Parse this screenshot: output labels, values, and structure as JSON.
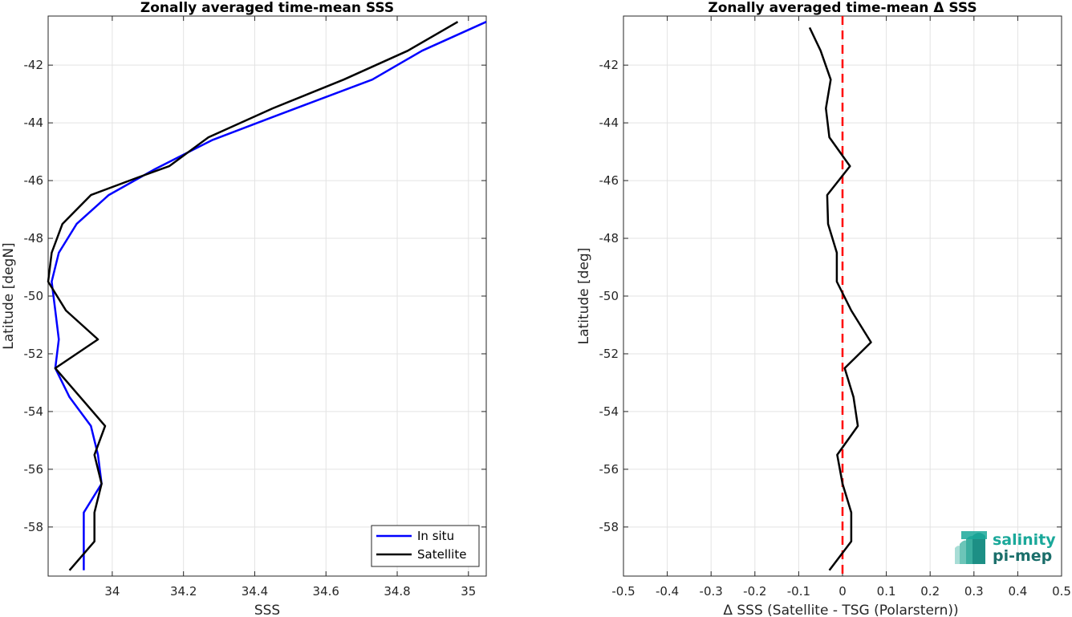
{
  "chart_data": [
    {
      "type": "line",
      "title": "Zonally averaged time-mean SSS",
      "xlabel": "SSS",
      "ylabel": "Latitude [degN]",
      "xlim": [
        33.82,
        35.05
      ],
      "ylim": [
        -59.7,
        -40.3
      ],
      "xticks": [
        34,
        34.2,
        34.4,
        34.6,
        34.8,
        35
      ],
      "xtick_labels": [
        "34",
        "34.2",
        "34.4",
        "34.6",
        "34.8",
        "35"
      ],
      "yticks": [
        -42,
        -44,
        -46,
        -48,
        -50,
        -52,
        -54,
        -56,
        -58
      ],
      "ytick_labels": [
        "-42",
        "-44",
        "-46",
        "-48",
        "-50",
        "-52",
        "-54",
        "-56",
        "-58"
      ],
      "grid": true,
      "legend_location": "bottom-right",
      "series": [
        {
          "name": "In situ",
          "color": "#0000ff",
          "points": [
            [
              35.05,
              -40.5
            ],
            [
              34.87,
              -41.5
            ],
            [
              34.73,
              -42.5
            ],
            [
              34.45,
              -43.8
            ],
            [
              34.28,
              -44.6
            ],
            [
              34.12,
              -45.6
            ],
            [
              33.99,
              -46.5
            ],
            [
              33.9,
              -47.5
            ],
            [
              33.85,
              -48.5
            ],
            [
              33.83,
              -49.5
            ],
            [
              33.84,
              -50.5
            ],
            [
              33.85,
              -51.5
            ],
            [
              33.84,
              -52.5
            ],
            [
              33.88,
              -53.5
            ],
            [
              33.94,
              -54.5
            ],
            [
              33.96,
              -55.5
            ],
            [
              33.97,
              -56.5
            ],
            [
              33.92,
              -57.5
            ],
            [
              33.92,
              -58.5
            ],
            [
              33.92,
              -59.5
            ]
          ]
        },
        {
          "name": "Satellite",
          "color": "#000000",
          "points": [
            [
              34.97,
              -40.5
            ],
            [
              34.83,
              -41.5
            ],
            [
              34.65,
              -42.5
            ],
            [
              34.45,
              -43.5
            ],
            [
              34.27,
              -44.5
            ],
            [
              34.16,
              -45.5
            ],
            [
              34.07,
              -45.9
            ],
            [
              33.94,
              -46.5
            ],
            [
              33.86,
              -47.5
            ],
            [
              33.83,
              -48.5
            ],
            [
              33.82,
              -49.5
            ],
            [
              33.87,
              -50.5
            ],
            [
              33.96,
              -51.5
            ],
            [
              33.84,
              -52.5
            ],
            [
              33.91,
              -53.5
            ],
            [
              33.98,
              -54.5
            ],
            [
              33.95,
              -55.5
            ],
            [
              33.97,
              -56.5
            ],
            [
              33.95,
              -57.5
            ],
            [
              33.95,
              -58.5
            ],
            [
              33.88,
              -59.5
            ]
          ]
        }
      ]
    },
    {
      "type": "line",
      "title": "Zonally averaged time-mean Δ SSS",
      "xlabel": "Δ SSS (Satellite - TSG (Polarstern))",
      "ylabel": "Latitude [deg]",
      "xlim": [
        -0.5,
        0.5
      ],
      "ylim": [
        -59.7,
        -40.3
      ],
      "xticks": [
        -0.5,
        -0.4,
        -0.3,
        -0.2,
        -0.1,
        0,
        0.1,
        0.2,
        0.3,
        0.4,
        0.5
      ],
      "xtick_labels": [
        "-0.5",
        "-0.4",
        "-0.3",
        "-0.2",
        "-0.1",
        "0",
        "0.1",
        "0.2",
        "0.3",
        "0.4",
        "0.5"
      ],
      "yticks": [
        -42,
        -44,
        -46,
        -48,
        -50,
        -52,
        -54,
        -56,
        -58
      ],
      "ytick_labels": [
        "-42",
        "-44",
        "-46",
        "-48",
        "-50",
        "-52",
        "-54",
        "-56",
        "-58"
      ],
      "grid": true,
      "reference_line": {
        "x": 0,
        "color": "#ff0000",
        "style": "dashed"
      },
      "series": [
        {
          "color": "#000000",
          "points": [
            [
              -0.075,
              -40.7
            ],
            [
              -0.05,
              -41.5
            ],
            [
              -0.027,
              -42.5
            ],
            [
              -0.038,
              -43.5
            ],
            [
              -0.03,
              -44.5
            ],
            [
              0.017,
              -45.5
            ],
            [
              -0.035,
              -46.5
            ],
            [
              -0.033,
              -47.5
            ],
            [
              -0.013,
              -48.5
            ],
            [
              -0.013,
              -49.5
            ],
            [
              0.02,
              -50.5
            ],
            [
              0.065,
              -51.6
            ],
            [
              0.005,
              -52.5
            ],
            [
              0.025,
              -53.5
            ],
            [
              0.035,
              -54.5
            ],
            [
              -0.012,
              -55.5
            ],
            [
              0.0,
              -56.5
            ],
            [
              0.02,
              -57.5
            ],
            [
              0.02,
              -58.5
            ],
            [
              -0.03,
              -59.5
            ]
          ]
        }
      ]
    }
  ],
  "logo": {
    "line1": "salinity",
    "line2": "pi-mep"
  }
}
